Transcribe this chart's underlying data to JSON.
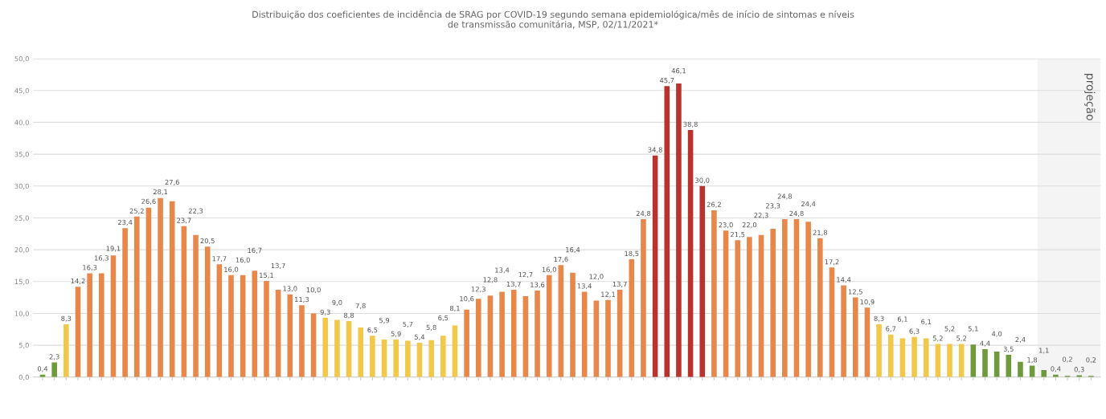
{
  "chart_data": {
    "type": "bar",
    "title": "Distribuição dos coeficientes de incidência de SRAG por COVID-19 segundo semana epidemiológica/mês de início de sintomas e níveis\nde transmissão comunitária, MSP, 02/11/2021*",
    "categories": [
      null,
      null,
      null,
      null,
      null,
      null,
      null,
      null,
      null,
      null,
      null,
      null,
      null,
      null,
      null,
      null,
      null,
      null,
      null,
      null,
      null,
      null,
      null,
      null,
      null,
      null,
      null,
      null,
      null,
      null,
      null,
      null,
      null,
      null,
      null,
      null,
      null,
      null,
      null,
      null,
      null,
      null,
      null,
      null,
      null,
      null,
      null,
      null,
      null,
      null,
      null,
      null,
      null,
      null,
      null,
      null,
      null,
      null,
      null,
      null,
      null,
      null,
      null,
      null,
      null,
      null,
      null,
      null,
      null,
      null,
      null,
      null,
      null,
      null,
      null,
      null,
      null,
      null,
      null,
      null,
      null,
      null,
      null,
      null,
      null,
      null,
      null,
      null,
      null,
      null
    ],
    "values": [
      0.4,
      2.3,
      8.3,
      14.2,
      16.3,
      16.3,
      19.1,
      23.4,
      25.2,
      26.6,
      28.1,
      27.6,
      23.7,
      22.3,
      20.5,
      17.7,
      16.0,
      16.0,
      16.7,
      15.1,
      13.7,
      13.0,
      11.3,
      10.0,
      9.3,
      9.0,
      8.8,
      7.8,
      6.5,
      5.9,
      5.9,
      5.7,
      5.4,
      5.8,
      6.5,
      8.1,
      10.6,
      12.3,
      12.8,
      13.4,
      13.7,
      12.7,
      13.6,
      16.0,
      17.6,
      16.4,
      13.4,
      12.0,
      12.1,
      13.7,
      18.5,
      24.8,
      34.8,
      45.7,
      46.1,
      38.8,
      30.0,
      26.2,
      23.0,
      21.5,
      22.0,
      22.3,
      23.3,
      24.8,
      24.8,
      24.4,
      21.8,
      17.2,
      14.4,
      12.5,
      10.9,
      8.3,
      6.7,
      6.1,
      6.3,
      6.1,
      5.2,
      5.2,
      5.2,
      5.1,
      4.4,
      4.0,
      3.5,
      2.4,
      1.8,
      1.1,
      0.4,
      0.2,
      0.3,
      0.2
    ],
    "value_labels": [
      "0,4",
      "2,3",
      "8,3",
      "14,2",
      "16,3",
      "16,3",
      "19,1",
      "23,4",
      "25,2",
      "26,6",
      "28,1",
      "27,6",
      "23,7",
      "22,3",
      "20,5",
      "17,7",
      "16,0",
      "16,0",
      "16,7",
      "15,1",
      "13,7",
      "13,0",
      "11,3",
      "10,0",
      "9,3",
      "9,0",
      "8,8",
      "7,8",
      "6,5",
      "5,9",
      "5,9",
      "5,7",
      "5,4",
      "5,8",
      "6,5",
      "8,1",
      "10,6",
      "12,3",
      "12,8",
      "13,4",
      "13,7",
      "12,7",
      "13,6",
      "16,0",
      "17,6",
      "16,4",
      "13,4",
      "12,0",
      "12,1",
      "13,7",
      "18,5",
      "24,8",
      "34,8",
      "45,7",
      "46,1",
      "38,8",
      "30,0",
      "26,2",
      "23,0",
      "21,5",
      "22,0",
      "22,3",
      "23,3",
      "24,8",
      "24,8",
      "24,4",
      "21,8",
      "17,2",
      "14,4",
      "12,5",
      "10,9",
      "8,3",
      "6,7",
      "6,1",
      "6,3",
      "6,1",
      "5,2",
      "5,2",
      "5,2",
      "5,1",
      "4,4",
      "4,0",
      "3,5",
      "2,4",
      "1,8",
      "1,1",
      "0,4",
      "0,2",
      "0,3",
      "0,2"
    ],
    "colors": [
      "#6f9a3c",
      "#6f9a3c",
      "#f2c84b",
      "#e8874a",
      "#e8874a",
      "#e8874a",
      "#e8874a",
      "#e8874a",
      "#e8874a",
      "#e8874a",
      "#e8874a",
      "#e8874a",
      "#e8874a",
      "#e8874a",
      "#e8874a",
      "#e8874a",
      "#e8874a",
      "#e8874a",
      "#e8874a",
      "#e8874a",
      "#e8874a",
      "#e8874a",
      "#e8874a",
      "#e8874a",
      "#f2c84b",
      "#f2c84b",
      "#f2c84b",
      "#f2c84b",
      "#f2c84b",
      "#f2c84b",
      "#f2c84b",
      "#f2c84b",
      "#f2c84b",
      "#f2c84b",
      "#f2c84b",
      "#f2c84b",
      "#e8874a",
      "#e8874a",
      "#e8874a",
      "#e8874a",
      "#e8874a",
      "#e8874a",
      "#e8874a",
      "#e8874a",
      "#e8874a",
      "#e8874a",
      "#e8874a",
      "#e8874a",
      "#e8874a",
      "#e8874a",
      "#e8874a",
      "#e8874a",
      "#b8322e",
      "#b8322e",
      "#b8322e",
      "#b8322e",
      "#b8322e",
      "#e8874a",
      "#e8874a",
      "#e8874a",
      "#e8874a",
      "#e8874a",
      "#e8874a",
      "#e8874a",
      "#e8874a",
      "#e8874a",
      "#e8874a",
      "#e8874a",
      "#e8874a",
      "#e8874a",
      "#e8874a",
      "#f2c84b",
      "#f2c84b",
      "#f2c84b",
      "#f2c84b",
      "#f2c84b",
      "#f2c84b",
      "#f2c84b",
      "#f2c84b",
      "#6f9a3c",
      "#6f9a3c",
      "#6f9a3c",
      "#6f9a3c",
      "#6f9a3c",
      "#6f9a3c",
      "#6f9a3c",
      "#6f9a3c",
      "#6f9a3c",
      "#6f9a3c",
      "#6f9a3c"
    ],
    "ylim": [
      0,
      50
    ],
    "yticks": [
      {
        "value": 0,
        "label": "0,0"
      },
      {
        "value": 5,
        "label": "5,0"
      },
      {
        "value": 10,
        "label": "10,0"
      },
      {
        "value": 15,
        "label": "15,0"
      },
      {
        "value": 20,
        "label": "20,0"
      },
      {
        "value": 25,
        "label": "25,0"
      },
      {
        "value": 30,
        "label": "30,0"
      },
      {
        "value": 35,
        "label": "35,0"
      },
      {
        "value": 40,
        "label": "40,0"
      },
      {
        "value": 45,
        "label": "45,0"
      },
      {
        "value": 50,
        "label": "50,0"
      }
    ],
    "annotations": [
      "projeção"
    ],
    "grid": "y"
  }
}
